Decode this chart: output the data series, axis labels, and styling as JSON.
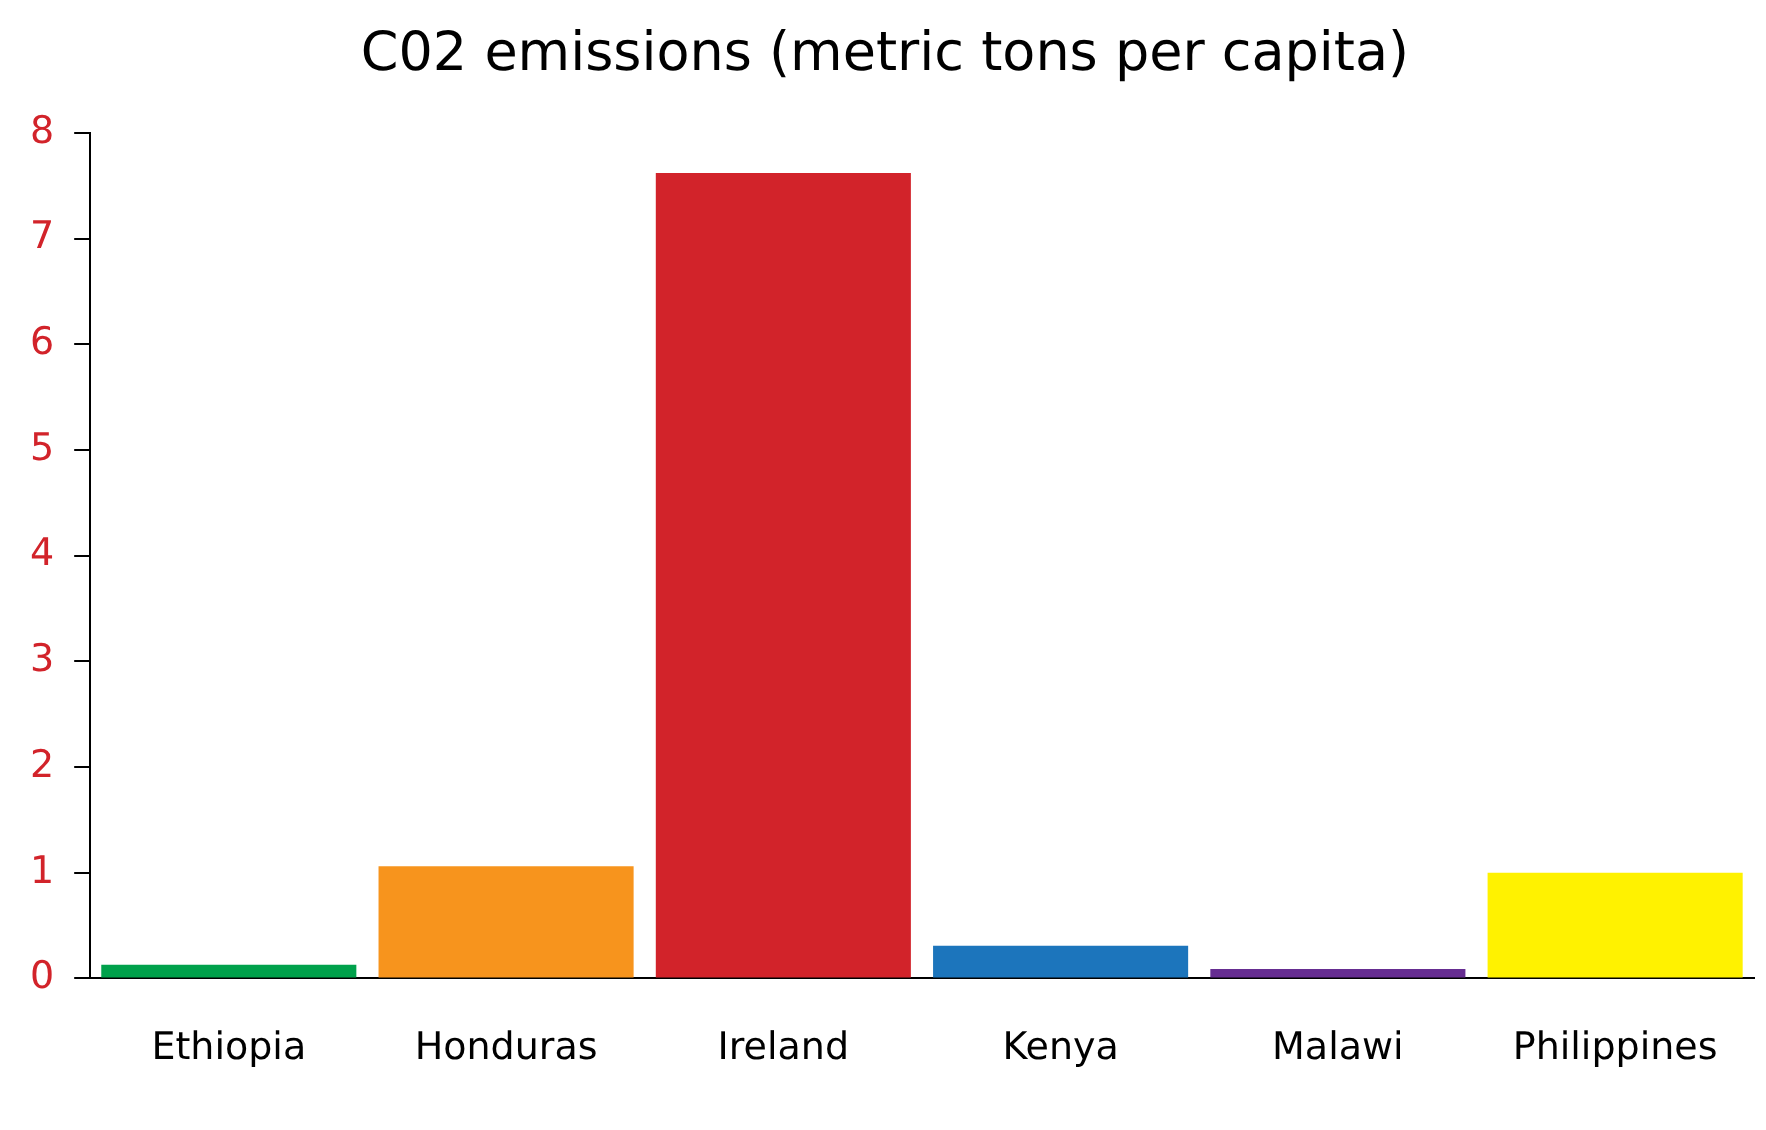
{
  "chart_data": {
    "type": "bar",
    "title": "C02 emissions (metric tons per capita)",
    "categories": [
      "Ethiopia",
      "Honduras",
      "Ireland",
      "Kenya",
      "Malawi",
      "Philippines"
    ],
    "values": [
      0.13,
      1.06,
      7.62,
      0.31,
      0.09,
      1.0
    ],
    "colors": [
      "#00a14b",
      "#f7941d",
      "#d2232a",
      "#1c75bc",
      "#662d91",
      "#fff200"
    ],
    "ylim": [
      0,
      8
    ],
    "yticks": [
      0,
      1,
      2,
      3,
      4,
      5,
      6,
      7,
      8
    ],
    "grid": false
  }
}
